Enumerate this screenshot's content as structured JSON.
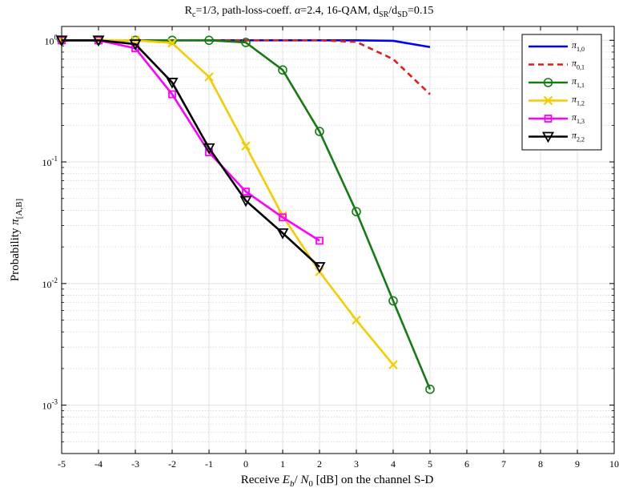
{
  "chart_data": {
    "type": "line",
    "title": {
      "text": "R_c=1/3,  path-loss-coeff. α=2.4,  16-QAM,  d_SR/d_SD=0.15",
      "parts": [
        {
          "t": "R",
          "sub": false
        },
        {
          "t": "c",
          "sub": true
        },
        {
          "t": "=1/3,  path-loss-coeff. ",
          "sub": false
        },
        {
          "t": "α",
          "sub": false,
          "italic": true
        },
        {
          "t": "=2.4,  16-QAM,  d",
          "sub": false
        },
        {
          "t": "SR",
          "sub": true
        },
        {
          "t": "/d",
          "sub": false
        },
        {
          "t": "SD",
          "sub": true
        },
        {
          "t": "=0.15",
          "sub": false
        }
      ]
    },
    "xlabel": {
      "text": "Receive  E_b/ N_0 [dB] on the channel S-D",
      "parts": [
        {
          "t": "Receive  ",
          "sub": false
        },
        {
          "t": "E",
          "sub": false,
          "italic": true
        },
        {
          "t": "b",
          "sub": true,
          "italic": true
        },
        {
          "t": "/ ",
          "sub": false
        },
        {
          "t": "N",
          "sub": false,
          "italic": true
        },
        {
          "t": "0",
          "sub": true
        },
        {
          "t": " [dB] on the channel S-D",
          "sub": false
        }
      ]
    },
    "ylabel": {
      "text": "Probability π_[A,B]",
      "parts": [
        {
          "t": "Probability ",
          "sub": false
        },
        {
          "t": "π",
          "sub": false,
          "italic": true
        },
        {
          "t": "[A,B]",
          "sub": true
        }
      ]
    },
    "xlim": [
      -5,
      10
    ],
    "ylim": [
      0.0004,
      1.3
    ],
    "yscale": "log",
    "xticks": [
      -5,
      -4,
      -3,
      -2,
      -1,
      0,
      1,
      2,
      3,
      4,
      5,
      6,
      7,
      8,
      9,
      10
    ],
    "xtick_labels": [
      "-5",
      "-4",
      "-3",
      "-2",
      "-1",
      "0",
      "1",
      "2",
      "3",
      "4",
      "5",
      "6",
      "7",
      "8",
      "9",
      "10"
    ],
    "yticks": [
      {
        "value": 0.001,
        "base": "10",
        "exp": "-3"
      },
      {
        "value": 0.01,
        "base": "10",
        "exp": "-2"
      },
      {
        "value": 0.1,
        "base": "10",
        "exp": "-1"
      },
      {
        "value": 1,
        "base": "10",
        "exp": "0"
      }
    ],
    "grid": true,
    "minor_grid": true,
    "legend_position": "top-right",
    "series": [
      {
        "name": "π_1,0",
        "sym": "π",
        "sub": "1,0",
        "color": "#0000ff",
        "dash": false,
        "marker": "none",
        "x": [
          -5,
          -4,
          -3,
          -2,
          -1,
          0,
          1,
          2,
          3,
          4,
          5
        ],
        "y": [
          1,
          1,
          1,
          1,
          1,
          1,
          1,
          1,
          1,
          0.99,
          0.88
        ]
      },
      {
        "name": "π_0,1",
        "sym": "π",
        "sub": "0,1",
        "color": "#e8191c",
        "dash": true,
        "marker": "none",
        "x": [
          -5,
          -4,
          -3,
          -2,
          -1,
          0,
          1,
          2,
          3,
          4,
          5
        ],
        "y": [
          1,
          1,
          1,
          1,
          1,
          1,
          1,
          1,
          0.97,
          0.7,
          0.36
        ]
      },
      {
        "name": "π_1,1",
        "sym": "π",
        "sub": "1,1",
        "color": "#137c13",
        "dash": false,
        "marker": "circle",
        "x": [
          -5,
          -4,
          -3,
          -2,
          -1,
          0,
          1,
          2,
          3,
          4,
          5
        ],
        "y": [
          1,
          1,
          1,
          1,
          1,
          0.96,
          0.57,
          0.178,
          0.039,
          0.0072,
          0.00135
        ]
      },
      {
        "name": "π_1,2",
        "sym": "π",
        "sub": "1,2",
        "color": "#f5cc00",
        "dash": false,
        "marker": "x",
        "x": [
          -5,
          -4,
          -3,
          -2,
          -1,
          0,
          1,
          2,
          3,
          4
        ],
        "y": [
          1,
          1,
          1,
          0.95,
          0.5,
          0.135,
          0.036,
          0.0125,
          0.005,
          0.00215
        ]
      },
      {
        "name": "π_1,3",
        "sym": "π",
        "sub": "1,3",
        "color": "#ff00ff",
        "dash": false,
        "marker": "square",
        "x": [
          -5,
          -4,
          -3,
          -2,
          -1,
          0,
          1,
          2
        ],
        "y": [
          1,
          1,
          0.86,
          0.36,
          0.12,
          0.057,
          0.035,
          0.0225
        ]
      },
      {
        "name": "π_2,2",
        "sym": "π",
        "sub": "2,2",
        "color": "#000000",
        "dash": false,
        "marker": "triangle-down",
        "x": [
          -5,
          -4,
          -3,
          -2,
          -1,
          0,
          1,
          2
        ],
        "y": [
          1,
          1,
          0.93,
          0.45,
          0.13,
          0.048,
          0.026,
          0.0137
        ]
      }
    ]
  }
}
